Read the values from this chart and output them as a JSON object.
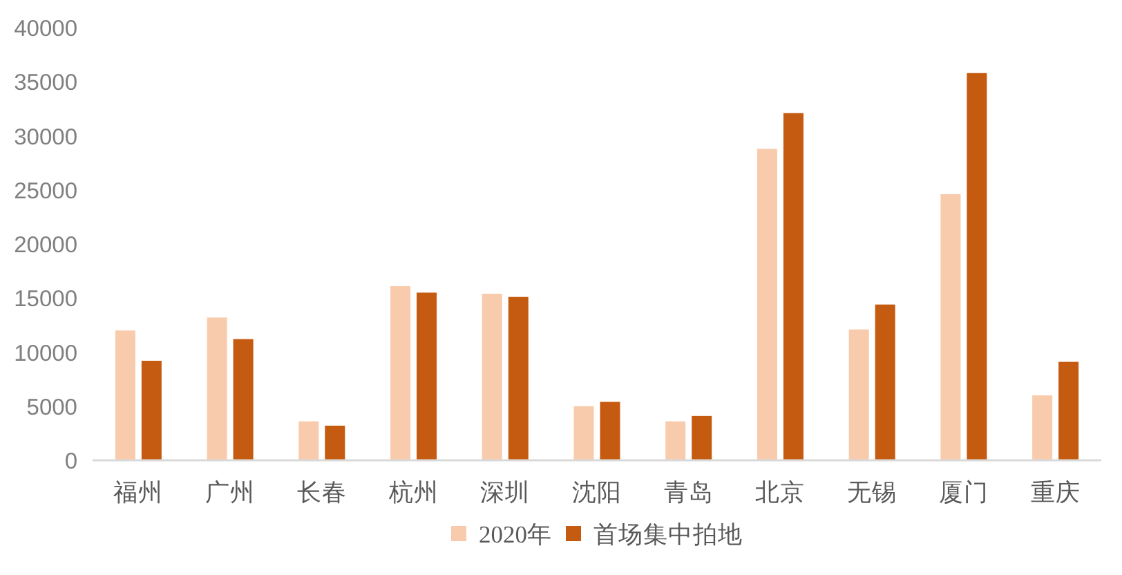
{
  "chart_data": {
    "type": "bar",
    "categories": [
      "福州",
      "广州",
      "长春",
      "杭州",
      "深圳",
      "沈阳",
      "青岛",
      "北京",
      "无锡",
      "厦门",
      "重庆"
    ],
    "series": [
      {
        "name": "2020年",
        "color": "#f8cbad",
        "values": [
          12000,
          13200,
          3600,
          16100,
          15400,
          5000,
          3600,
          28800,
          12100,
          24600,
          6000
        ]
      },
      {
        "name": "首场集中拍地",
        "color": "#c55a11",
        "values": [
          9200,
          11200,
          3200,
          15500,
          15100,
          5400,
          4100,
          32100,
          14400,
          35800,
          9100
        ]
      }
    ],
    "ylim": [
      0,
      40000
    ],
    "yticks": [
      0,
      5000,
      10000,
      15000,
      20000,
      25000,
      30000,
      35000,
      40000
    ],
    "legend": "bottom"
  }
}
